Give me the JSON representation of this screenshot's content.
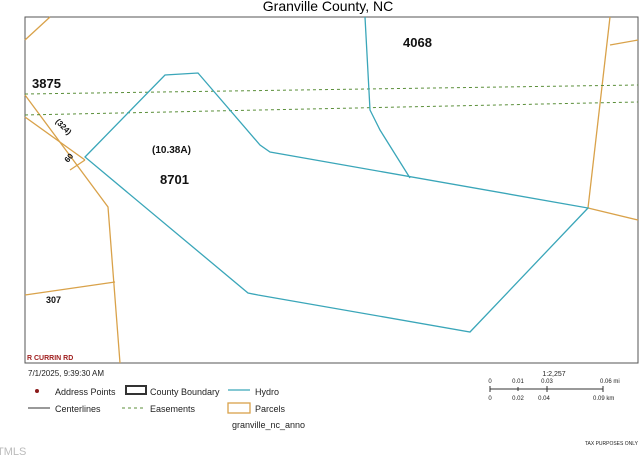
{
  "header": {
    "title": "Granville County, NC"
  },
  "map": {
    "labels": {
      "parcel_4068": "4068",
      "parcel_3875": "3875",
      "acreage": "(10.38A)",
      "parcel_8701": "8701",
      "parcel_307": "307",
      "route": "(324)",
      "address": "60",
      "road": "R CURRIN RD"
    }
  },
  "footer": {
    "timestamp": "7/1/2025, 9:39:30 AM",
    "scale": "1:2,257",
    "scale_mi": [
      "0",
      "0.01",
      "0.03",
      "0.06 mi"
    ],
    "scale_km": [
      "0",
      "0.02",
      "0.04",
      "0.09 km"
    ],
    "notice": "TAX PURPOSES ONLY",
    "brand": "TMLS"
  },
  "legend": {
    "items": [
      "Address Points",
      "County Boundary",
      "Hydro",
      "Centerlines",
      "Easements",
      "Parcels",
      "granville_nc_anno"
    ]
  }
}
